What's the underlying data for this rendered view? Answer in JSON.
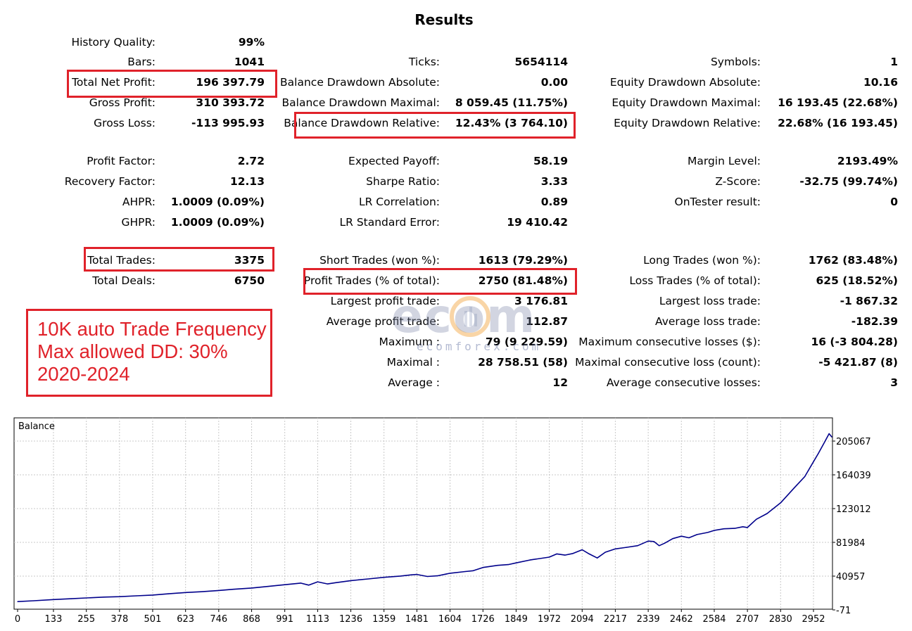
{
  "header": {
    "title": "Results"
  },
  "stats": {
    "col1": [
      {
        "id": "history-quality",
        "label": "History Quality:",
        "value": "99%"
      },
      {
        "id": "bars",
        "label": "Bars:",
        "value": "1041"
      },
      {
        "id": "total-net-profit",
        "label": "Total Net Profit:",
        "value": "196 397.79"
      },
      {
        "id": "gross-profit",
        "label": "Gross Profit:",
        "value": "310 393.72"
      },
      {
        "id": "gross-loss",
        "label": "Gross Loss:",
        "value": "-113 995.93"
      },
      {
        "id": "profit-factor",
        "label": "Profit Factor:",
        "value": "2.72"
      },
      {
        "id": "recovery-factor",
        "label": "Recovery Factor:",
        "value": "12.13"
      },
      {
        "id": "ahpr",
        "label": "AHPR:",
        "value": "1.0009 (0.09%)"
      },
      {
        "id": "ghpr",
        "label": "GHPR:",
        "value": "1.0009 (0.09%)"
      },
      {
        "id": "total-trades",
        "label": "Total Trades:",
        "value": "3375"
      },
      {
        "id": "total-deals",
        "label": "Total Deals:",
        "value": "6750"
      }
    ],
    "col2": [
      {
        "id": "ticks",
        "label": "Ticks:",
        "value": "5654114"
      },
      {
        "id": "balance-dd-absolute",
        "label": "Balance Drawdown Absolute:",
        "value": "0.00"
      },
      {
        "id": "balance-dd-maximal",
        "label": "Balance Drawdown Maximal:",
        "value": "8 059.45 (11.75%)"
      },
      {
        "id": "balance-dd-relative",
        "label": "Balance Drawdown Relative:",
        "value": "12.43% (3 764.10)"
      },
      {
        "id": "expected-payoff",
        "label": "Expected Payoff:",
        "value": "58.19"
      },
      {
        "id": "sharpe-ratio",
        "label": "Sharpe Ratio:",
        "value": "3.33"
      },
      {
        "id": "lr-correlation",
        "label": "LR Correlation:",
        "value": "0.89"
      },
      {
        "id": "lr-standard-error",
        "label": "LR Standard Error:",
        "value": "19 410.42"
      },
      {
        "id": "short-trades",
        "label": "Short Trades (won %):",
        "value": "1613 (79.29%)"
      },
      {
        "id": "profit-trades",
        "label": "Profit Trades (% of total):",
        "value": "2750 (81.48%)"
      },
      {
        "id": "largest-profit-trade",
        "label": "Largest profit trade:",
        "value": "3 176.81"
      },
      {
        "id": "average-profit-trade",
        "label": "Average profit trade:",
        "value": "112.87"
      },
      {
        "id": "maximum",
        "label": "Maximum :",
        "value": "79 (9 229.59)"
      },
      {
        "id": "maximal",
        "label": "Maximal :",
        "value": "28 758.51 (58)"
      },
      {
        "id": "average",
        "label": "Average :",
        "value": "12"
      }
    ],
    "col3": [
      {
        "id": "symbols",
        "label": "Symbols:",
        "value": "1"
      },
      {
        "id": "equity-dd-absolute",
        "label": "Equity Drawdown Absolute:",
        "value": "10.16"
      },
      {
        "id": "equity-dd-maximal",
        "label": "Equity Drawdown Maximal:",
        "value": "16 193.45 (22.68%)"
      },
      {
        "id": "equity-dd-relative",
        "label": "Equity Drawdown Relative:",
        "value": "22.68% (16 193.45)"
      },
      {
        "id": "margin-level",
        "label": "Margin Level:",
        "value": "2193.49%"
      },
      {
        "id": "z-score",
        "label": "Z-Score:",
        "value": "-32.75 (99.74%)"
      },
      {
        "id": "ontester-result",
        "label": "OnTester result:",
        "value": "0"
      },
      {
        "id": "long-trades",
        "label": "Long Trades (won %):",
        "value": "1762 (83.48%)"
      },
      {
        "id": "loss-trades",
        "label": "Loss Trades (% of total):",
        "value": "625 (18.52%)"
      },
      {
        "id": "largest-loss-trade",
        "label": "Largest loss trade:",
        "value": "-1 867.32"
      },
      {
        "id": "average-loss-trade",
        "label": "Average loss trade:",
        "value": "-182.39"
      },
      {
        "id": "max-consecutive-losses",
        "label": "Maximum consecutive losses ($):",
        "value": "16 (-3 804.28)"
      },
      {
        "id": "maximal-consecutive-loss",
        "label": "Maximal consecutive loss (count):",
        "value": "-5 421.87 (8)"
      },
      {
        "id": "average-consecutive-losses",
        "label": "Average consecutive losses:",
        "value": "3"
      }
    ]
  },
  "annotation": {
    "lines": [
      "10K auto Trade Frequency",
      "Max allowed DD: 30%",
      "2020-2024"
    ],
    "color": "#e0222a"
  },
  "watermark": {
    "brand": "ecom",
    "site": "ecomforex.com"
  },
  "chart_data": {
    "type": "line",
    "title": "Balance",
    "x_ticks": [
      0,
      133,
      255,
      378,
      501,
      623,
      746,
      868,
      991,
      1113,
      1236,
      1359,
      1481,
      1604,
      1726,
      1849,
      1972,
      2094,
      2217,
      2339,
      2462,
      2584,
      2707,
      2830,
      2952
    ],
    "y_ticks": [
      -71,
      40957,
      81984,
      123012,
      164039,
      205067
    ],
    "xlim": [
      0,
      3050
    ],
    "ylim": [
      -71,
      225000
    ],
    "grid": true,
    "line_color": "#00008b",
    "series": [
      {
        "name": "Balance",
        "x": [
          0,
          60,
          133,
          200,
          255,
          320,
          378,
          440,
          501,
          560,
          623,
          680,
          746,
          800,
          868,
          930,
          991,
          1050,
          1080,
          1113,
          1150,
          1180,
          1236,
          1300,
          1359,
          1420,
          1460,
          1481,
          1520,
          1560,
          1604,
          1660,
          1690,
          1726,
          1780,
          1820,
          1849,
          1900,
          1972,
          2000,
          2030,
          2060,
          2094,
          2120,
          2150,
          2180,
          2217,
          2260,
          2300,
          2339,
          2360,
          2380,
          2400,
          2430,
          2462,
          2490,
          2520,
          2560,
          2584,
          2620,
          2660,
          2690,
          2707,
          2740,
          2780,
          2830,
          2880,
          2920,
          2952,
          2970,
          2990,
          3010,
          3020
        ],
        "y": [
          10000,
          11000,
          12500,
          13500,
          14500,
          15500,
          16000,
          17000,
          18000,
          19500,
          21000,
          22000,
          23500,
          25000,
          26500,
          28500,
          30500,
          32500,
          30000,
          34000,
          31500,
          33000,
          35500,
          37500,
          39500,
          41000,
          42500,
          43000,
          40500,
          41500,
          44500,
          46500,
          47500,
          51500,
          54000,
          55000,
          57000,
          60500,
          64000,
          68000,
          66500,
          68500,
          73000,
          68000,
          63000,
          70000,
          74000,
          76000,
          78000,
          83500,
          83000,
          78000,
          81000,
          86500,
          89500,
          87500,
          91500,
          94000,
          96500,
          98500,
          99000,
          101000,
          100000,
          110000,
          117000,
          130000,
          148000,
          162000,
          180000,
          190000,
          202000,
          214000,
          210000
        ]
      }
    ]
  }
}
